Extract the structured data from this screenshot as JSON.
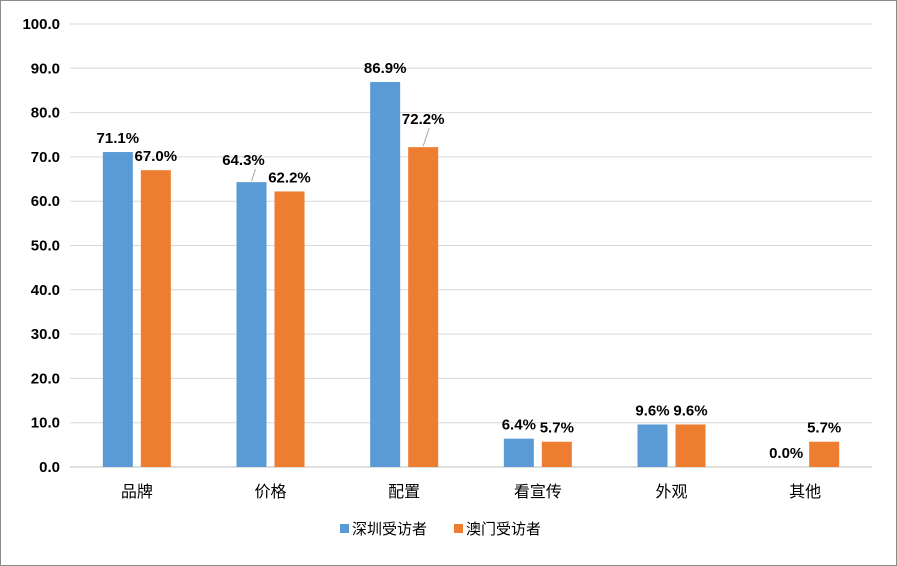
{
  "chart_data": {
    "type": "bar",
    "categories": [
      "品牌",
      "价格",
      "配置",
      "看宣传",
      "外观",
      "其他"
    ],
    "series": [
      {
        "name": "深圳受访者",
        "color": "#5B9BD5",
        "values": [
          71.1,
          64.3,
          86.9,
          6.4,
          9.6,
          0.0
        ],
        "labels": [
          "71.1%",
          "64.3%",
          "86.9%",
          "6.4%",
          "9.6%",
          "0.0%"
        ]
      },
      {
        "name": "澳门受访者",
        "color": "#ED7D31",
        "values": [
          67.0,
          62.2,
          72.2,
          5.7,
          9.6,
          5.7
        ],
        "labels": [
          "67.0%",
          "62.2%",
          "72.2%",
          "5.7%",
          "9.6%",
          "5.7%"
        ]
      }
    ],
    "ylim": [
      0,
      100
    ],
    "yticks": [
      "0.0",
      "10.0",
      "20.0",
      "30.0",
      "40.0",
      "50.0",
      "60.0",
      "70.0",
      "80.0",
      "90.0",
      "100.0"
    ],
    "grid": true,
    "legend": "bottom",
    "title": "",
    "xlabel": "",
    "ylabel": ""
  }
}
